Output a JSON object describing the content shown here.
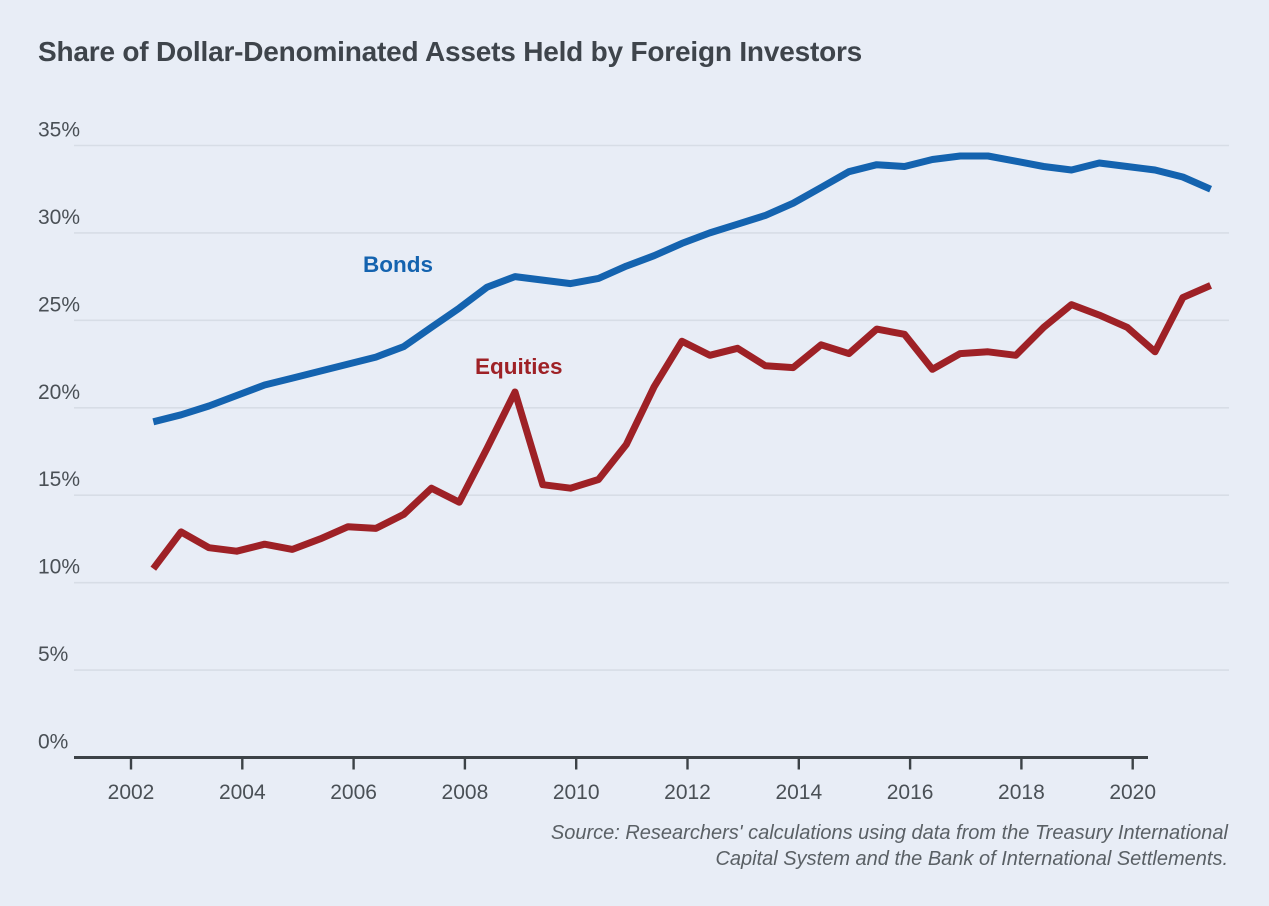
{
  "title": "Share of Dollar-Denominated Assets Held by Foreign Investors",
  "source_note": {
    "line1": "Source: Researchers' calculations using data from the Treasury International",
    "line2": "Capital System and the Bank of International Settlements."
  },
  "colors": {
    "background": "#e8edf6",
    "title_text": "#3e444b",
    "axis_text": "#4a5056",
    "source_text": "#5a6065",
    "gridline": "#d7dde6",
    "axis_line": "#3c4247",
    "bonds": "#1463af",
    "equities": "#9e2126"
  },
  "chart_data": {
    "type": "line",
    "title": "Share of Dollar-Denominated Assets Held by Foreign Investors",
    "xlabel": "",
    "ylabel": "",
    "ylim": [
      0,
      35
    ],
    "grid": "horizontal",
    "legend_position": "inline-labels",
    "x_ticks": [
      2002,
      2004,
      2006,
      2008,
      2010,
      2012,
      2014,
      2016,
      2018,
      2020
    ],
    "y_ticks": [
      {
        "value": 0,
        "label": "0%"
      },
      {
        "value": 5,
        "label": "5%"
      },
      {
        "value": 10,
        "label": "10%"
      },
      {
        "value": 15,
        "label": "15%"
      },
      {
        "value": 20,
        "label": "20%"
      },
      {
        "value": 25,
        "label": "25%"
      },
      {
        "value": 30,
        "label": "30%"
      },
      {
        "value": 35,
        "label": "35%"
      }
    ],
    "x": [
      2002.4,
      2002.9,
      2003.4,
      2003.9,
      2004.4,
      2004.9,
      2005.4,
      2005.9,
      2006.4,
      2006.9,
      2007.4,
      2007.9,
      2008.4,
      2008.9,
      2009.4,
      2009.9,
      2010.4,
      2010.9,
      2011.4,
      2011.9,
      2012.4,
      2012.9,
      2013.4,
      2013.9,
      2014.4,
      2014.9,
      2015.4,
      2015.9,
      2016.4,
      2016.9,
      2017.4,
      2017.9,
      2018.4,
      2018.9,
      2019.4,
      2019.9,
      2020.4,
      2020.9,
      2021.4
    ],
    "series": [
      {
        "name": "Bonds",
        "color": "#1463af",
        "values": [
          19.2,
          19.6,
          20.1,
          20.7,
          21.3,
          21.7,
          22.1,
          22.5,
          22.9,
          23.5,
          24.6,
          25.7,
          26.9,
          27.5,
          27.3,
          27.1,
          27.4,
          28.1,
          28.7,
          29.4,
          30.0,
          30.5,
          31.0,
          31.7,
          32.6,
          33.5,
          33.9,
          33.8,
          34.2,
          34.4,
          34.4,
          34.1,
          33.8,
          33.6,
          34.0,
          33.8,
          33.6,
          33.2,
          32.5
        ]
      },
      {
        "name": "Equities",
        "color": "#9e2126",
        "values": [
          10.8,
          12.9,
          12.0,
          11.8,
          12.2,
          11.9,
          12.5,
          13.2,
          13.1,
          13.9,
          15.4,
          14.6,
          17.7,
          20.9,
          15.6,
          15.4,
          15.9,
          17.9,
          21.2,
          23.8,
          23.0,
          23.4,
          22.4,
          22.3,
          23.6,
          23.1,
          24.5,
          24.2,
          22.2,
          23.1,
          23.2,
          23.0,
          24.6,
          25.9,
          25.3,
          24.6,
          23.2,
          26.3,
          27.0
        ]
      }
    ]
  }
}
